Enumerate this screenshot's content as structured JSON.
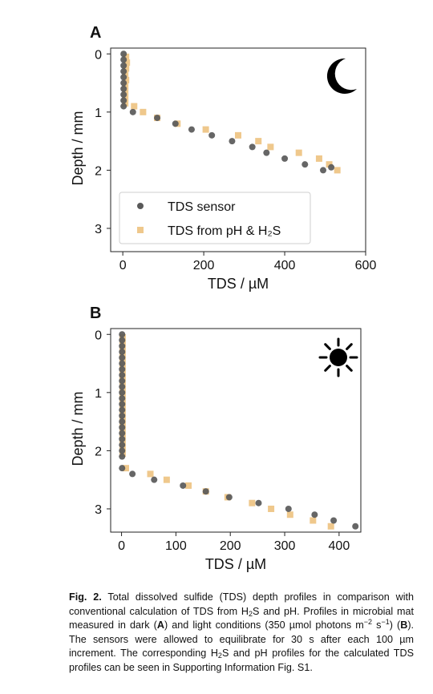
{
  "chart_data": [
    {
      "panel_label": "A",
      "type": "scatter",
      "condition_icon": "moon-icon",
      "xlabel": "TDS / µM",
      "ylabel": "Depth / mm",
      "xlim": [
        -30,
        600
      ],
      "ylim": [
        3.4,
        -0.1
      ],
      "y_inverted": true,
      "xticks": [
        0,
        200,
        400,
        600
      ],
      "yticks": [
        0,
        1,
        2,
        3
      ],
      "legend": {
        "placement": "lower-left",
        "entries": [
          "TDS sensor",
          "TDS from pH & H₂S"
        ]
      },
      "series": [
        {
          "name": "TDS sensor",
          "marker": "circle",
          "color": "#595959",
          "x": [
            2,
            2,
            2,
            2,
            2,
            2,
            2,
            2,
            2,
            2,
            25,
            85,
            130,
            170,
            220,
            270,
            320,
            355,
            400,
            450,
            495,
            515
          ],
          "y": [
            0.0,
            0.1,
            0.2,
            0.3,
            0.4,
            0.5,
            0.6,
            0.7,
            0.8,
            0.9,
            1.0,
            1.1,
            1.2,
            1.3,
            1.4,
            1.5,
            1.6,
            1.7,
            1.8,
            1.9,
            2.0,
            1.95
          ]
        },
        {
          "name": "TDS from pH & H₂S",
          "marker": "square",
          "color": "#EFC88C",
          "x": [
            8,
            10,
            8,
            6,
            8,
            6,
            6,
            6,
            6,
            28,
            50,
            85,
            135,
            205,
            285,
            335,
            365,
            435,
            485,
            510,
            530
          ],
          "y": [
            0.05,
            0.15,
            0.25,
            0.35,
            0.45,
            0.55,
            0.65,
            0.75,
            0.85,
            0.9,
            1.0,
            1.1,
            1.2,
            1.3,
            1.4,
            1.5,
            1.6,
            1.7,
            1.8,
            1.9,
            2.0
          ]
        }
      ]
    },
    {
      "panel_label": "B",
      "type": "scatter",
      "condition_icon": "sun-icon",
      "xlabel": "TDS / µM",
      "ylabel": "Depth / mm",
      "xlim": [
        -20,
        440
      ],
      "ylim": [
        3.4,
        -0.1
      ],
      "y_inverted": true,
      "xticks": [
        0,
        100,
        200,
        300,
        400
      ],
      "yticks": [
        0,
        1,
        2,
        3
      ],
      "series": [
        {
          "name": "TDS sensor",
          "marker": "circle",
          "color": "#595959",
          "x": [
            1,
            1,
            1,
            1,
            1,
            1,
            1,
            1,
            1,
            1,
            1,
            1,
            1,
            1,
            1,
            1,
            1,
            1,
            1,
            1,
            1,
            1,
            1,
            20,
            60,
            113,
            155,
            198,
            252,
            307,
            355,
            390,
            430
          ],
          "y": [
            0.0,
            0.1,
            0.2,
            0.3,
            0.4,
            0.5,
            0.6,
            0.7,
            0.8,
            0.9,
            1.0,
            1.1,
            1.2,
            1.3,
            1.4,
            1.5,
            1.6,
            1.7,
            1.8,
            1.9,
            2.0,
            2.1,
            2.3,
            2.4,
            2.5,
            2.6,
            2.7,
            2.8,
            2.9,
            3.0,
            3.1,
            3.2,
            3.3
          ]
        },
        {
          "name": "TDS from pH & H₂S",
          "marker": "square",
          "color": "#EFC88C",
          "x": [
            2,
            2,
            2,
            2,
            2,
            2,
            2,
            2,
            2,
            2,
            2,
            2,
            2,
            2,
            2,
            2,
            2,
            2,
            2,
            2,
            2,
            8,
            53,
            83,
            123,
            155,
            195,
            240,
            275,
            310,
            352,
            385
          ],
          "y": [
            0.05,
            0.15,
            0.25,
            0.35,
            0.45,
            0.55,
            0.65,
            0.75,
            0.85,
            0.95,
            1.05,
            1.15,
            1.25,
            1.35,
            1.45,
            1.55,
            1.65,
            1.75,
            1.85,
            1.95,
            2.05,
            2.3,
            2.4,
            2.5,
            2.6,
            2.7,
            2.8,
            2.9,
            3.0,
            3.1,
            3.2,
            3.3
          ]
        }
      ]
    }
  ],
  "caption": {
    "fig_label": "Fig. 2.",
    "parts": [
      {
        "t": " Total dissolved sulfide (TDS) depth profiles in comparison with conventional calculation of TDS from H"
      },
      {
        "sub": "2"
      },
      {
        "t": "S and pH. Profiles in microbial mat measured in dark ("
      },
      {
        "b": "A"
      },
      {
        "t": ") and light conditions (350 µmol photons m"
      },
      {
        "sup": "−2"
      },
      {
        "t": " s"
      },
      {
        "sup": "−1"
      },
      {
        "t": ") ("
      },
      {
        "b": "B"
      },
      {
        "t": "). The sensors were allowed to equilibrate for 30 s after each 100 µm increment. The corresponding H"
      },
      {
        "sub": "2"
      },
      {
        "t": "S and pH profiles for the calculated TDS profiles can be seen in Supporting Information Fig. S1."
      }
    ]
  }
}
